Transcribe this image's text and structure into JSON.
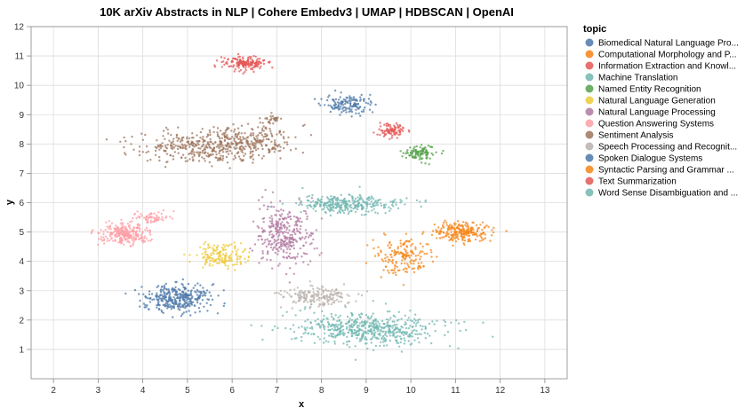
{
  "chart_data": {
    "type": "scatter",
    "title": "10K arXiv Abstracts in NLP | Cohere Embedv3 | UMAP | HDBSCAN | OpenAI",
    "xlabel": "x",
    "ylabel": "y",
    "xlim": [
      1.5,
      13.5
    ],
    "ylim": [
      0,
      12
    ],
    "x_ticks": [
      "2",
      "3",
      "4",
      "5",
      "6",
      "7",
      "8",
      "9",
      "10",
      "11",
      "12",
      "13"
    ],
    "y_ticks": [
      "1",
      "2",
      "3",
      "4",
      "5",
      "6",
      "7",
      "8",
      "9",
      "10",
      "11",
      "12"
    ],
    "grid": true,
    "legend": {
      "title": "topic",
      "placement": "right"
    },
    "series": [
      {
        "name": "Biomedical Natural Language Pro...",
        "color": "#4c78a8",
        "clusters": [
          {
            "cx": 8.6,
            "cy": 9.35,
            "sx": 0.28,
            "sy": 0.16,
            "n": 140
          }
        ]
      },
      {
        "name": "Computational Morphology and P...",
        "color": "#f58518",
        "clusters": [
          {
            "cx": 9.8,
            "cy": 4.15,
            "sx": 0.3,
            "sy": 0.38,
            "n": 170
          }
        ]
      },
      {
        "name": "Information Extraction and Knowl...",
        "color": "#e45756",
        "clusters": [
          {
            "cx": 9.55,
            "cy": 8.5,
            "sx": 0.18,
            "sy": 0.12,
            "n": 90
          }
        ]
      },
      {
        "name": "Machine Translation",
        "color": "#72b7b2",
        "clusters": [
          {
            "cx": 9.0,
            "cy": 1.7,
            "sx": 0.8,
            "sy": 0.28,
            "n": 550
          }
        ]
      },
      {
        "name": "Named Entity Recognition",
        "color": "#54a24b",
        "clusters": [
          {
            "cx": 10.2,
            "cy": 7.7,
            "sx": 0.18,
            "sy": 0.13,
            "n": 100
          }
        ]
      },
      {
        "name": "Natural Language Generation",
        "color": "#eeca3b",
        "clusters": [
          {
            "cx": 5.75,
            "cy": 4.2,
            "sx": 0.28,
            "sy": 0.22,
            "n": 160
          }
        ]
      },
      {
        "name": "Natural Language Processing",
        "color": "#b279a2",
        "clusters": [
          {
            "cx": 7.15,
            "cy": 4.9,
            "sx": 0.3,
            "sy": 0.5,
            "n": 330
          }
        ]
      },
      {
        "name": "Question Answering Systems",
        "color": "#ff9da6",
        "clusters": [
          {
            "cx": 3.6,
            "cy": 4.95,
            "sx": 0.28,
            "sy": 0.2,
            "n": 260
          },
          {
            "cx": 4.2,
            "cy": 5.5,
            "sx": 0.22,
            "sy": 0.1,
            "n": 60
          }
        ]
      },
      {
        "name": "Sentiment Analysis",
        "color": "#9d755d",
        "clusters": [
          {
            "cx": 5.2,
            "cy": 7.9,
            "sx": 0.7,
            "sy": 0.28,
            "n": 340
          },
          {
            "cx": 6.4,
            "cy": 8.1,
            "sx": 0.5,
            "sy": 0.28,
            "n": 220
          },
          {
            "cx": 6.9,
            "cy": 8.85,
            "sx": 0.1,
            "sy": 0.06,
            "n": 30
          }
        ]
      },
      {
        "name": "Speech Processing and Recognit...",
        "color": "#bab0ac",
        "clusters": [
          {
            "cx": 7.9,
            "cy": 2.8,
            "sx": 0.35,
            "sy": 0.16,
            "n": 190
          }
        ]
      },
      {
        "name": "Spoken Dialogue Systems",
        "color": "#4c78a8",
        "clusters": [
          {
            "cx": 4.8,
            "cy": 2.75,
            "sx": 0.38,
            "sy": 0.25,
            "n": 330
          }
        ]
      },
      {
        "name": "Syntactic Parsing and Grammar ...",
        "color": "#f58518",
        "clusters": [
          {
            "cx": 11.1,
            "cy": 5.0,
            "sx": 0.3,
            "sy": 0.16,
            "n": 230
          }
        ]
      },
      {
        "name": "Text Summarization",
        "color": "#e45756",
        "clusters": [
          {
            "cx": 6.3,
            "cy": 10.75,
            "sx": 0.24,
            "sy": 0.12,
            "n": 170
          }
        ]
      },
      {
        "name": "Word Sense Disambiguation and ...",
        "color": "#72b7b2",
        "clusters": [
          {
            "cx": 8.6,
            "cy": 5.95,
            "sx": 0.6,
            "sy": 0.15,
            "n": 320
          }
        ]
      }
    ]
  }
}
